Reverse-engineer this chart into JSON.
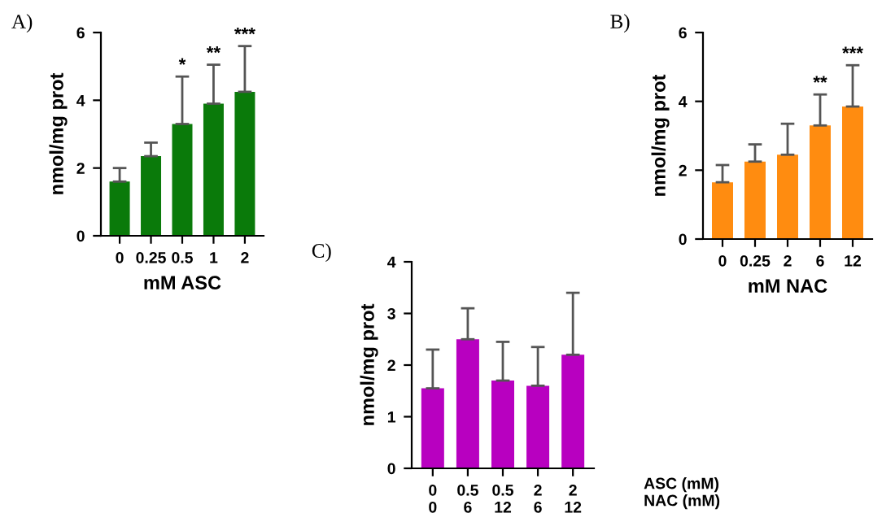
{
  "chart_data": [
    {
      "type": "bar",
      "title": "A)",
      "xlabel": "mM ASC",
      "ylabel": "nmol/mg prot",
      "categories": [
        "0",
        "0.25",
        "0.5",
        "1",
        "2"
      ],
      "series": [
        {
          "color": "#0a7a0a",
          "values": [
            1.6,
            2.35,
            3.3,
            3.9,
            4.25
          ],
          "errors": [
            [
              1.6,
              2.0
            ],
            [
              2.35,
              2.75
            ],
            [
              3.3,
              4.7
            ],
            [
              3.9,
              5.05
            ],
            [
              4.25,
              5.6
            ]
          ]
        }
      ],
      "ylim": [
        0,
        6
      ],
      "yticks": [
        0,
        2,
        4,
        6
      ],
      "grid": false,
      "legend": false,
      "annotations": [
        "*",
        "**",
        "***"
      ]
    },
    {
      "type": "bar",
      "title": "B)",
      "xlabel": "mM NAC",
      "ylabel": "nmol/mg prot",
      "categories": [
        "0",
        "0.25",
        "2",
        "6",
        "12"
      ],
      "series": [
        {
          "color": "#ff8c10",
          "values": [
            1.65,
            2.25,
            2.45,
            3.3,
            3.85
          ],
          "errors": [
            [
              1.65,
              2.15
            ],
            [
              2.25,
              2.75
            ],
            [
              2.45,
              3.35
            ],
            [
              3.3,
              4.2
            ],
            [
              3.85,
              5.05
            ]
          ]
        }
      ],
      "ylim": [
        0,
        6
      ],
      "yticks": [
        0,
        2,
        4,
        6
      ],
      "grid": false,
      "legend": false,
      "annotations": [
        "**",
        "***"
      ]
    },
    {
      "type": "bar",
      "title": "C)",
      "ylabel": "nmol/mg prot",
      "categories": [
        "0\n0",
        "0.5\n6",
        "0.5\n12",
        "2\n6",
        "2\n12"
      ],
      "series": [
        {
          "color": "#b800c0",
          "values": [
            1.55,
            2.5,
            1.7,
            1.6,
            2.2
          ],
          "errors": [
            [
              1.55,
              2.3
            ],
            [
              2.5,
              3.1
            ],
            [
              1.7,
              2.45
            ],
            [
              1.6,
              2.35
            ],
            [
              2.2,
              3.4
            ]
          ]
        }
      ],
      "ylim": [
        0,
        4
      ],
      "yticks": [
        0,
        1,
        2,
        3,
        4
      ],
      "grid": false,
      "legend": false,
      "annotations": [
        "ASC (mM)\nNAC (mM)"
      ]
    }
  ]
}
